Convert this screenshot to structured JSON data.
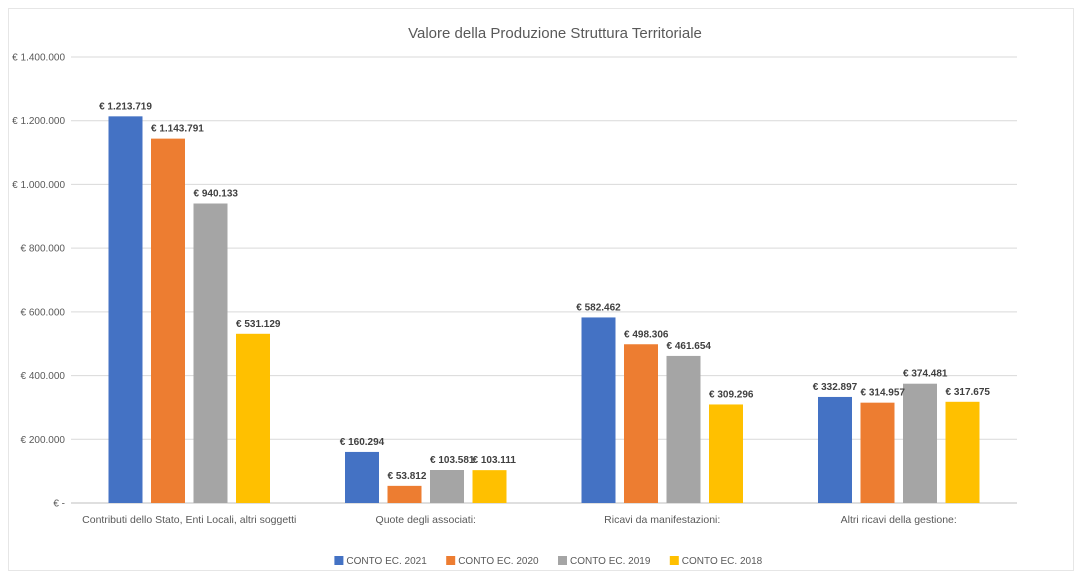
{
  "chart_data": {
    "type": "bar",
    "title": "Valore della Produzione Struttura Territoriale",
    "xlabel": "",
    "ylabel": "",
    "ylim": [
      0,
      1400000
    ],
    "ytick_values": [
      0,
      200000,
      400000,
      600000,
      800000,
      1000000,
      1200000,
      1400000
    ],
    "ytick_labels": [
      "€ -",
      "€ 200.000",
      "€ 400.000",
      "€ 600.000",
      "€ 800.000",
      "€ 1.000.000",
      "€ 1.200.000",
      "€ 1.400.000"
    ],
    "categories": [
      "Contributi dello Stato, Enti Locali, altri soggetti",
      "Quote degli associati:",
      "Ricavi da manifestazioni:",
      "Altri ricavi della gestione:"
    ],
    "series": [
      {
        "name": "CONTO EC. 2021",
        "color": "#4472c4",
        "values": [
          1213719,
          160294,
          582462,
          332897
        ],
        "labels": [
          "€ 1.213.719",
          "€ 160.294",
          "€ 582.462",
          "€ 332.897"
        ]
      },
      {
        "name": "CONTO EC. 2020",
        "color": "#ed7d31",
        "values": [
          1143791,
          53812,
          498306,
          314957
        ],
        "labels": [
          "€ 1.143.791",
          "€ 53.812",
          "€ 498.306",
          "€ 314.957"
        ]
      },
      {
        "name": "CONTO EC. 2019",
        "color": "#a5a5a5",
        "values": [
          940133,
          103581,
          461654,
          374481
        ],
        "labels": [
          "€ 940.133",
          "€ 103.581",
          "€ 461.654",
          "€ 374.481"
        ]
      },
      {
        "name": "CONTO EC. 2018",
        "color": "#ffc000",
        "values": [
          531129,
          103111,
          309296,
          317675
        ],
        "labels": [
          "€ 531.129",
          "€ 103.111",
          "€ 309.296",
          "€ 317.675"
        ]
      }
    ],
    "grid": true,
    "legend": "bottom-center"
  }
}
